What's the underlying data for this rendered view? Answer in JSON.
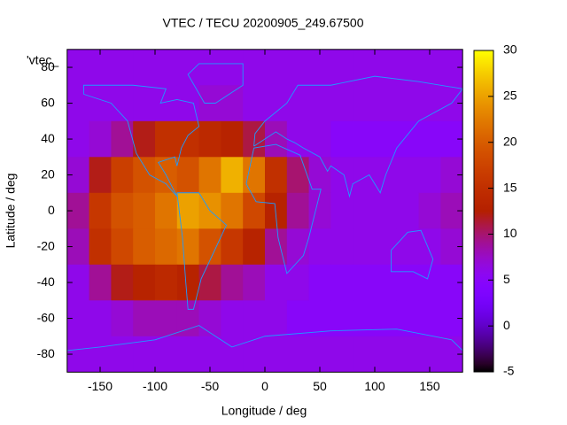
{
  "chart_data": {
    "type": "heatmap",
    "title": "VTEC / TECU 20200905_249.67500",
    "legend": "'vtec_",
    "xlabel": "Longitude / deg",
    "ylabel": "Latitude / deg",
    "xlim": [
      -180,
      180
    ],
    "ylim": [
      -90,
      90
    ],
    "zlim": [
      -5,
      30
    ],
    "xticks": [
      -150,
      -100,
      -50,
      0,
      50,
      100,
      150
    ],
    "yticks": [
      -80,
      -60,
      -40,
      -20,
      0,
      20,
      40,
      60,
      80
    ],
    "zticks": [
      -5,
      0,
      5,
      10,
      15,
      20,
      25,
      30
    ],
    "x": [
      -170,
      -150,
      -130,
      -110,
      -90,
      -70,
      -50,
      -30,
      -10,
      10,
      30,
      50,
      70,
      90,
      110,
      130,
      150,
      170
    ],
    "y": [
      80,
      60,
      40,
      20,
      0,
      -20,
      -40,
      -60,
      -80
    ],
    "values": [
      [
        6,
        6,
        6,
        6,
        6,
        6,
        6,
        6,
        6,
        6,
        6,
        6,
        6,
        6,
        6,
        6,
        6,
        6
      ],
      [
        6,
        6,
        6,
        6,
        6,
        6,
        7,
        7,
        6,
        6,
        6,
        6,
        6,
        6,
        6,
        6,
        6,
        6
      ],
      [
        6,
        7,
        9,
        12,
        15,
        15,
        14,
        13,
        11,
        8,
        6,
        6,
        5,
        5,
        5,
        5,
        5,
        5
      ],
      [
        7,
        12,
        17,
        19,
        20,
        19,
        22,
        26,
        22,
        15,
        10,
        7,
        6,
        6,
        6,
        6,
        6,
        7
      ],
      [
        9,
        16,
        19,
        20,
        22,
        25,
        24,
        22,
        18,
        13,
        9,
        7,
        6,
        6,
        6,
        6,
        7,
        8
      ],
      [
        8,
        15,
        18,
        20,
        21,
        22,
        19,
        16,
        13,
        9,
        7,
        6,
        6,
        6,
        6,
        6,
        6,
        7
      ],
      [
        6,
        9,
        12,
        13,
        14,
        13,
        11,
        9,
        8,
        6,
        6,
        5,
        5,
        5,
        5,
        5,
        5,
        5
      ],
      [
        6,
        6,
        7,
        8,
        8,
        8,
        7,
        6,
        6,
        6,
        5,
        5,
        5,
        5,
        5,
        5,
        5,
        5
      ],
      [
        6,
        6,
        6,
        6,
        6,
        6,
        6,
        6,
        6,
        6,
        6,
        6,
        6,
        6,
        6,
        6,
        6,
        6
      ]
    ]
  }
}
